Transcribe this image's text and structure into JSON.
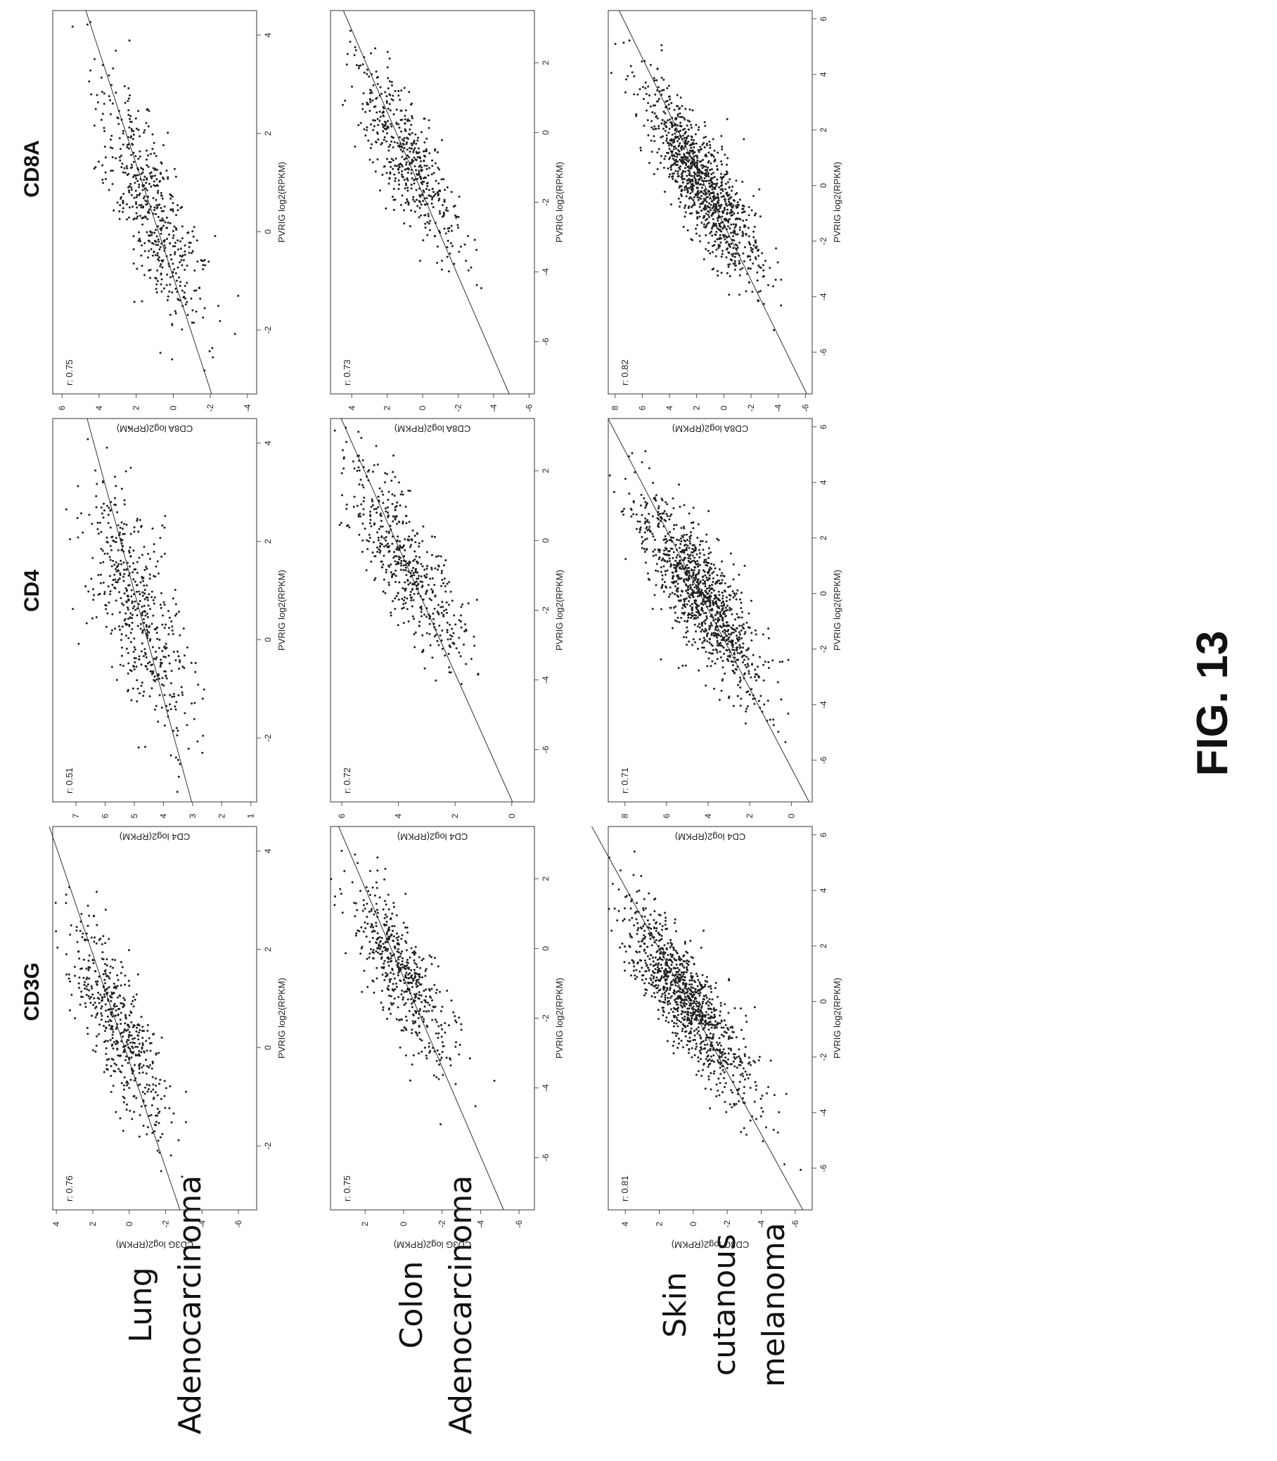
{
  "figure_label": "FIG. 13",
  "column_headers": [
    "CD3G",
    "CD4",
    "CD8A"
  ],
  "row_labels": [
    [
      "Lung",
      "Adenocarcinoma"
    ],
    [
      "Colon",
      "Adenocarcinoma"
    ],
    [
      "Skin",
      "cutanous",
      "melanoma"
    ]
  ],
  "colors": {
    "points": "#222222",
    "line": "#333333",
    "frame": "#555555",
    "text": "#111111"
  },
  "chart_data": [
    {
      "type": "scatter",
      "row": 0,
      "col": 0,
      "title": "",
      "xlabel": "PVRIG log2(RPKM)",
      "ylabel": "CD3G log2(RPKM)",
      "r_label": "r: 0.76",
      "xlim": [
        -3.3,
        4.5
      ],
      "ylim": [
        -7,
        4.2
      ],
      "xticks": [
        -2,
        0,
        2,
        4
      ],
      "yticks": [
        -6,
        -4,
        -2,
        0,
        2,
        4
      ],
      "fit": {
        "slope": 0.92,
        "intercept": 0.25
      },
      "cloud": {
        "n": 520,
        "cx": 0.4,
        "cy": 0.6,
        "sx": 1.1,
        "sy": 1.3
      }
    },
    {
      "type": "scatter",
      "row": 0,
      "col": 1,
      "title": "",
      "xlabel": "PVRIG log2(RPKM)",
      "ylabel": "CD4 log2(RPKM)",
      "r_label": "r: 0.51",
      "xlim": [
        -3.3,
        4.5
      ],
      "ylim": [
        0.8,
        7.8
      ],
      "xticks": [
        -2,
        0,
        2,
        4
      ],
      "yticks": [
        1,
        2,
        3,
        4,
        5,
        6,
        7
      ],
      "fit": {
        "slope": 0.46,
        "intercept": 4.55
      },
      "cloud": {
        "n": 520,
        "cx": 0.5,
        "cy": 4.8,
        "sx": 1.3,
        "sy": 1.0
      }
    },
    {
      "type": "scatter",
      "row": 0,
      "col": 2,
      "title": "",
      "xlabel": "PVRIG log2(RPKM)",
      "ylabel": "CD8A log2(RPKM)",
      "r_label": "r: 0.75",
      "xlim": [
        -3.3,
        4.5
      ],
      "ylim": [
        -4.5,
        6.5
      ],
      "xticks": [
        -2,
        0,
        2,
        4
      ],
      "yticks": [
        -4,
        -2,
        0,
        2,
        4,
        6
      ],
      "fit": {
        "slope": 0.87,
        "intercept": 0.8
      },
      "cloud": {
        "n": 520,
        "cx": 0.5,
        "cy": 1.3,
        "sx": 1.2,
        "sy": 1.4
      }
    },
    {
      "type": "scatter",
      "row": 1,
      "col": 0,
      "title": "",
      "xlabel": "PVRIG log2(RPKM)",
      "ylabel": "CD3G log2(RPKM)",
      "r_label": "r: 0.75",
      "xlim": [
        -7.5,
        3.5
      ],
      "ylim": [
        -6.8,
        3.8
      ],
      "xticks": [
        -6,
        -4,
        -2,
        0,
        2
      ],
      "yticks": [
        -6,
        -4,
        -2,
        0,
        2
      ],
      "fit": {
        "slope": 0.78,
        "intercept": 0.65
      },
      "cloud": {
        "n": 520,
        "cx": -0.7,
        "cy": 0.2,
        "sx": 1.4,
        "sy": 1.3
      }
    },
    {
      "type": "scatter",
      "row": 1,
      "col": 1,
      "title": "",
      "xlabel": "PVRIG log2(RPKM)",
      "ylabel": "CD4 log2(RPKM)",
      "r_label": "r: 0.72",
      "xlim": [
        -7.5,
        3.5
      ],
      "ylim": [
        -0.8,
        6.4
      ],
      "xticks": [
        -6,
        -4,
        -2,
        0,
        2
      ],
      "yticks": [
        0,
        2,
        4,
        6
      ],
      "fit": {
        "slope": 0.55,
        "intercept": 4.1
      },
      "cloud": {
        "n": 520,
        "cx": -0.7,
        "cy": 3.7,
        "sx": 1.4,
        "sy": 1.0
      }
    },
    {
      "type": "scatter",
      "row": 1,
      "col": 2,
      "title": "",
      "xlabel": "PVRIG log2(RPKM)",
      "ylabel": "CD8A log2(RPKM)",
      "r_label": "r: 0.73",
      "xlim": [
        -7.5,
        3.5
      ],
      "ylim": [
        -6.3,
        5.2
      ],
      "xticks": [
        -6,
        -4,
        -2,
        0,
        2
      ],
      "yticks": [
        -6,
        -4,
        -2,
        0,
        2,
        4
      ],
      "fit": {
        "slope": 0.85,
        "intercept": 1.5
      },
      "cloud": {
        "n": 520,
        "cx": -0.8,
        "cy": 0.9,
        "sx": 1.4,
        "sy": 1.4
      }
    },
    {
      "type": "scatter",
      "row": 2,
      "col": 0,
      "title": "",
      "xlabel": "PVRIG log2(RPKM)",
      "ylabel": "CD3G log2(RPKM)",
      "r_label": "r: 0.81",
      "xlim": [
        -7.5,
        6.3
      ],
      "ylim": [
        -7,
        5
      ],
      "xticks": [
        -6,
        -4,
        -2,
        0,
        2,
        4,
        6
      ],
      "yticks": [
        -6,
        -4,
        -2,
        0,
        2,
        4
      ],
      "fit": {
        "slope": 0.9,
        "intercept": 0.3
      },
      "cloud": {
        "n": 1100,
        "cx": 0.0,
        "cy": 0.4,
        "sx": 1.7,
        "sy": 1.6
      }
    },
    {
      "type": "scatter",
      "row": 2,
      "col": 1,
      "title": "",
      "xlabel": "PVRIG log2(RPKM)",
      "ylabel": "CD4 log2(RPKM)",
      "r_label": "r: 0.71",
      "xlim": [
        -7.5,
        6.3
      ],
      "ylim": [
        -1,
        8.8
      ],
      "xticks": [
        -6,
        -4,
        -2,
        0,
        2,
        4,
        6
      ],
      "yticks": [
        0,
        2,
        4,
        6,
        8
      ],
      "fit": {
        "slope": 0.7,
        "intercept": 4.4
      },
      "cloud": {
        "n": 1100,
        "cx": 0.0,
        "cy": 4.4,
        "sx": 1.7,
        "sy": 1.4
      }
    },
    {
      "type": "scatter",
      "row": 2,
      "col": 2,
      "title": "",
      "xlabel": "PVRIG log2(RPKM)",
      "ylabel": "CD8A log2(RPKM)",
      "r_label": "r: 0.82",
      "xlim": [
        -7.5,
        6.3
      ],
      "ylim": [
        -6.5,
        8.5
      ],
      "xticks": [
        -6,
        -4,
        -2,
        0,
        2,
        4,
        6
      ],
      "yticks": [
        -6,
        -4,
        -2,
        0,
        2,
        4,
        6,
        8
      ],
      "fit": {
        "slope": 1.0,
        "intercept": 1.4
      },
      "cloud": {
        "n": 1100,
        "cx": 0.0,
        "cy": 1.4,
        "sx": 1.7,
        "sy": 1.8
      }
    }
  ]
}
